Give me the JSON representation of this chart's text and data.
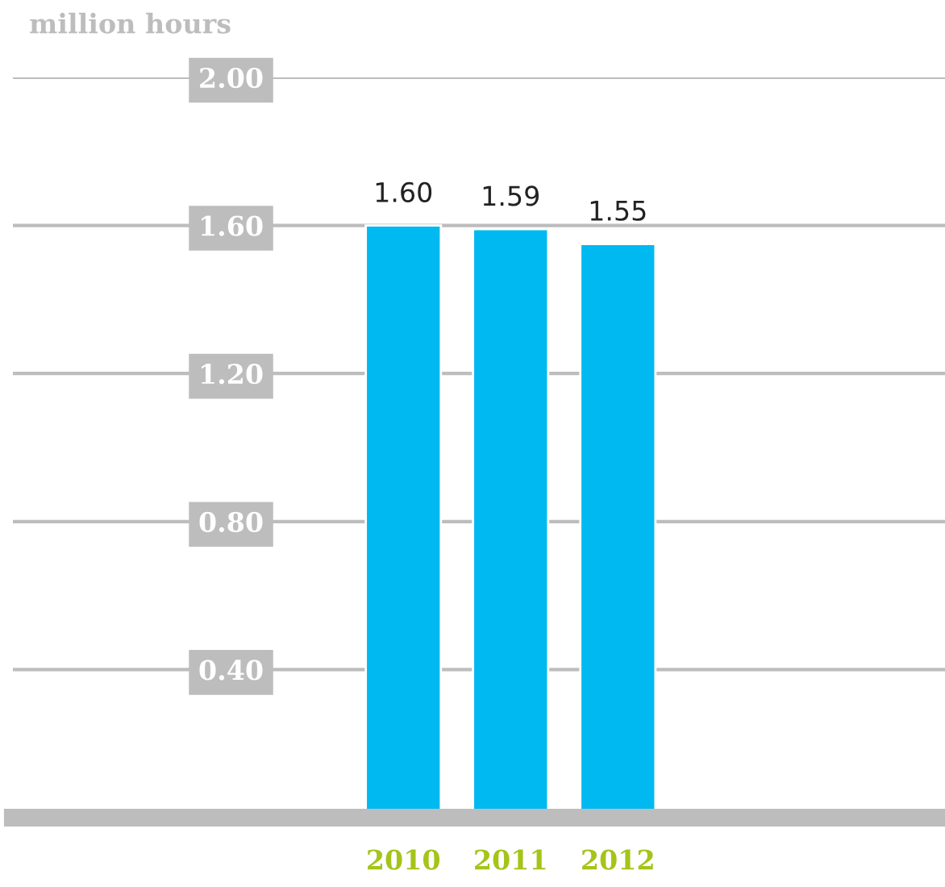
{
  "chart_data": {
    "type": "bar",
    "ylabel": "million hours",
    "categories": [
      "2010",
      "2011",
      "2012"
    ],
    "values": [
      1.6,
      1.59,
      1.55
    ],
    "color": "#00b9f1",
    "value_labels": [
      "1.60",
      "1.59",
      "1.55"
    ],
    "ylim": [
      0,
      2.0
    ],
    "yticks": [
      {
        "value": 0.4,
        "label": "0.40"
      },
      {
        "value": 0.8,
        "label": "0.80"
      },
      {
        "value": 1.2,
        "label": "1.20"
      },
      {
        "value": 1.6,
        "label": "1.60"
      },
      {
        "value": 2.0,
        "label": "2.00"
      }
    ],
    "grid": "y"
  }
}
